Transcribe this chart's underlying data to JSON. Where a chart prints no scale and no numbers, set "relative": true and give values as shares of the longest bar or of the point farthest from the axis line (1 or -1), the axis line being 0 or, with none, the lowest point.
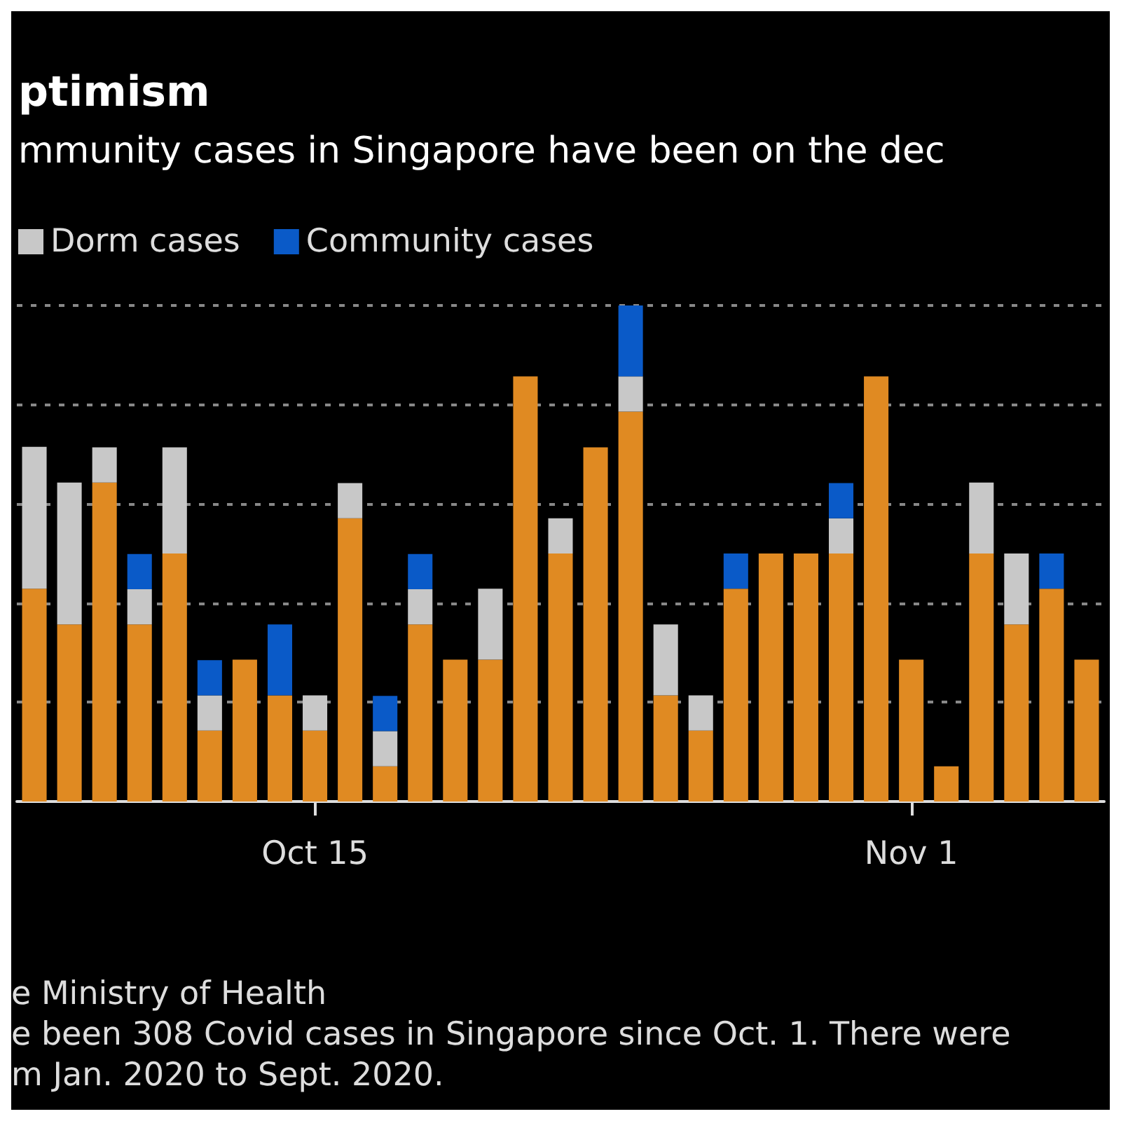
{
  "chart_data": {
    "type": "bar",
    "stacked": true,
    "relative": true,
    "title": "ptimism",
    "subtitle": "mmunity cases in Singapore have been on the dec",
    "categories": [
      null,
      null,
      null,
      null,
      null,
      null,
      null,
      null,
      "Oct 15",
      null,
      null,
      null,
      null,
      null,
      null,
      null,
      null,
      null,
      null,
      null,
      null,
      null,
      null,
      null,
      null,
      "Nov 1",
      null,
      null,
      null,
      null,
      null
    ],
    "series": [
      {
        "color": "#e08a22",
        "values": [
          0.429,
          0.357,
          0.643,
          0.357,
          0.5,
          0.143,
          0.286,
          0.214,
          0.143,
          0.571,
          0.071,
          0.357,
          0.286,
          0.286,
          0.857,
          0.5,
          0.714,
          0.786,
          0.214,
          0.143,
          0.429,
          0.5,
          0.5,
          0.5,
          0.857,
          0.286,
          0.071,
          0.5,
          0.357,
          0.429,
          0.286
        ]
      },
      {
        "name": "Dorm cases",
        "color": "#c8c8c8",
        "values": [
          0.286,
          0.286,
          0.071,
          0.071,
          0.214,
          0.071,
          0,
          0,
          0.071,
          0.071,
          0.071,
          0.071,
          0,
          0.143,
          0,
          0.071,
          0,
          0.071,
          0.143,
          0.071,
          0,
          0,
          0,
          0.071,
          0,
          0,
          0,
          0.143,
          0.143,
          0,
          0
        ]
      },
      {
        "name": "Community cases",
        "color": "#0a5ac8",
        "values": [
          0,
          0,
          0,
          0.071,
          0,
          0.071,
          0,
          0.143,
          0,
          0,
          0.071,
          0.071,
          0,
          0,
          0,
          0,
          0,
          0.143,
          0,
          0,
          0.071,
          0,
          0,
          0.071,
          0,
          0,
          0,
          0,
          0,
          0.071,
          0
        ]
      }
    ],
    "grid": "y",
    "legend": "top left",
    "annotations": [
      "e Ministry of Health",
      "e been 308 Covid cases in Singapore since Oct. 1. There were",
      "m Jan. 2020 to Sept. 2020."
    ]
  }
}
